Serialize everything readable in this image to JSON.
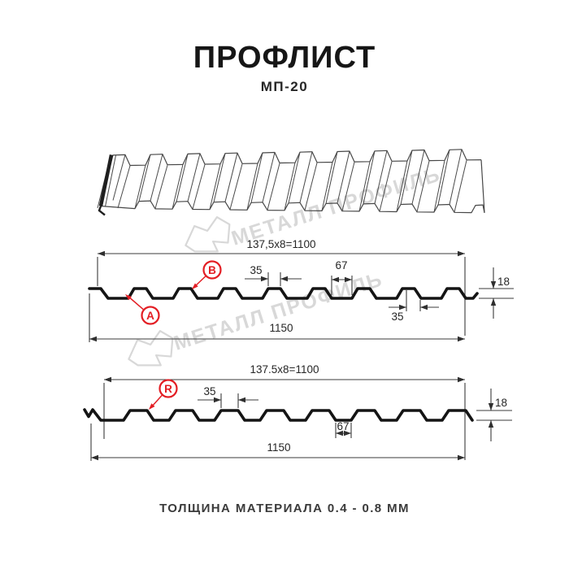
{
  "header": {
    "title": "ПРОФЛИСТ",
    "subtitle": "МП-20"
  },
  "watermark": {
    "text": "МЕТАЛЛ ПРОФИЛЬ"
  },
  "profile_top": {
    "coverage": "137,5x8=1100",
    "rib_top": "35",
    "flat": "67",
    "height": "18",
    "slope": "35",
    "total": "1150",
    "marker_a": "A",
    "marker_b": "B"
  },
  "profile_bottom": {
    "coverage": "137.5x8=1100",
    "rib_top": "35",
    "flat": "67",
    "height": "18",
    "total": "1150",
    "marker_r": "R"
  },
  "footer": {
    "text": "ТОЛЩИНА МАТЕРИАЛА 0.4 - 0.8 ММ"
  },
  "colors": {
    "accent_red": "#e31e24",
    "profile_line": "#141414",
    "dimension_line": "#3b3b3b",
    "watermark_gray": "#d8d8d8"
  }
}
